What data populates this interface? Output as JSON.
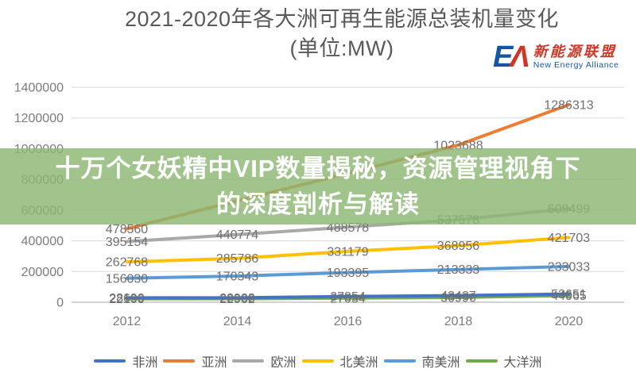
{
  "title": {
    "line1": "2021-2020年各大洲可再生能源总装机量变化",
    "line2": "(单位:MW)"
  },
  "logo": {
    "monogram_e": "E",
    "monogram_a": "Λ",
    "cn": "新能源联盟",
    "en": "New Energy Alliance",
    "blue": "#1456A4",
    "red": "#CE3626"
  },
  "overlay": {
    "line1": "十万个女妖精中VIP数量揭秘，资源管理视角下",
    "line2": "的深度剖析与解读",
    "bg": "rgba(139,183,114,0.82)",
    "text_color": "#FFFFFF"
  },
  "axis": {
    "tick_color": "#7B7B7B",
    "grid_color": "#D8D8D8",
    "axis_line_color": "#C4C4C4",
    "data_label_color": "#6F6F6F"
  },
  "chart_data": {
    "type": "line",
    "title": "2021-2020年各大洲可再生能源总装机量变化",
    "subtitle": "(单位:MW)",
    "categories": [
      "2012",
      "2014",
      "2016",
      "2018",
      "2020"
    ],
    "ylim": [
      0,
      1400000
    ],
    "y_tick_step": 200000,
    "y_ticks": [
      0,
      200000,
      400000,
      600000,
      800000,
      1000000,
      1200000,
      1400000
    ],
    "grid": true,
    "legend_position": "bottom",
    "series": [
      {
        "id": "africa",
        "name": "非洲",
        "color": "#4472C4",
        "values": [
          28690,
          28908,
          37854,
          43437,
          53651
        ],
        "labels": [
          "28690",
          "28908",
          "37854",
          "43437",
          "53651"
        ]
      },
      {
        "id": "asia",
        "name": "亚洲",
        "color": "#ED7D31",
        "values": [
          478560,
          660000,
          840000,
          1023688,
          1286313
        ],
        "labels": [
          "478560",
          null,
          null,
          "1023688",
          "1286313"
        ]
      },
      {
        "id": "europe",
        "name": "欧洲",
        "color": "#A9A9A9",
        "values": [
          395154,
          440774,
          488578,
          537578,
          609499
        ],
        "labels": [
          "395154",
          "440774",
          "488578",
          "537578",
          "609499"
        ]
      },
      {
        "id": "north-america",
        "name": "北美洲",
        "color": "#FFC000",
        "values": [
          262768,
          285786,
          331179,
          368956,
          421703
        ],
        "labels": [
          "262768",
          "285786",
          "331179",
          "368956",
          "421703"
        ]
      },
      {
        "id": "south-america",
        "name": "南美洲",
        "color": "#5B9BD5",
        "values": [
          156030,
          170343,
          193395,
          213333,
          233033
        ],
        "labels": [
          "156030",
          "170343",
          "193395",
          "213333",
          "233033"
        ]
      },
      {
        "id": "oceania",
        "name": "大洋洲",
        "color": "#70AD47",
        "values": [
          22190,
          22902,
          27034,
          30996,
          44065
        ],
        "labels": [
          "22190",
          "22902",
          "27034",
          "30996",
          "44065"
        ]
      }
    ]
  }
}
